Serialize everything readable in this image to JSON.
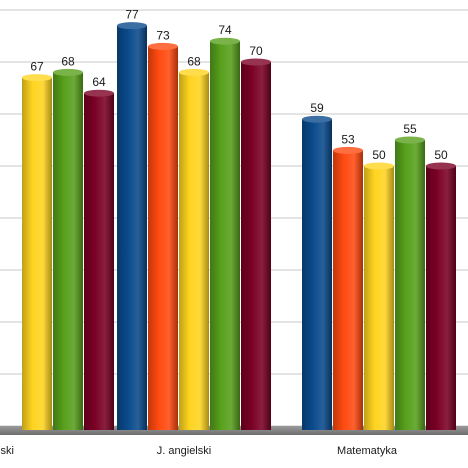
{
  "chart_data": {
    "type": "bar",
    "title": "",
    "xlabel": "",
    "ylabel": "",
    "ylim": [
      0,
      80
    ],
    "grid": true,
    "legend": "none",
    "categories": [
      "J. polski",
      "J. angielski",
      "Matematyka"
    ],
    "category_labels": [
      "lski",
      "J. angielski",
      "Matematyka"
    ],
    "series": [
      {
        "color": "#0a4a8c",
        "values": [
          null,
          77,
          59
        ]
      },
      {
        "color": "#ff4a10",
        "values": [
          null,
          73,
          53
        ]
      },
      {
        "color": "#ffd420",
        "values": [
          67,
          68,
          50
        ]
      },
      {
        "color": "#57a01c",
        "values": [
          68,
          74,
          55
        ]
      },
      {
        "color": "#7a0025",
        "values": [
          64,
          70,
          50
        ]
      }
    ]
  }
}
